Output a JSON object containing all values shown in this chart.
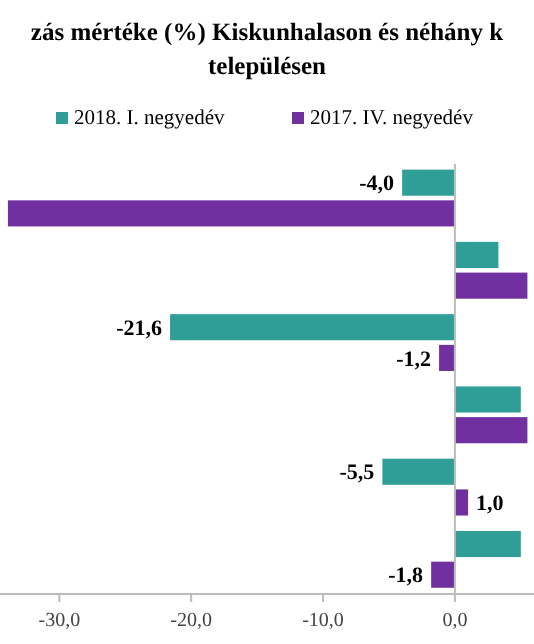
{
  "chart_data": {
    "type": "bar",
    "orientation": "horizontal",
    "title": "zás mértéke (%) Kiskunhalason és néhány k településen",
    "categories": [
      null,
      null,
      null,
      null,
      null,
      null
    ],
    "series": [
      {
        "name": "2018. I. negyedév",
        "color": "#2e9e96",
        "values": [
          -4.0,
          3.3,
          -21.6,
          5.0,
          -5.5,
          5.0
        ],
        "value_labels": [
          "-4,0",
          null,
          "-21,6",
          null,
          "-5,5",
          null
        ]
      },
      {
        "name": "2017. IV. negyedév",
        "color": "#7030a0",
        "values": [
          -33.9,
          5.5,
          -1.2,
          5.5,
          1.0,
          -1.8
        ],
        "value_labels": [
          null,
          null,
          "-1,2",
          null,
          "1,0",
          "-1,8"
        ]
      }
    ],
    "xlim": [
      -34.5,
      6
    ],
    "xticks": [
      {
        "value": -30,
        "label": "-30,0"
      },
      {
        "value": -20,
        "label": "-20,0"
      },
      {
        "value": -10,
        "label": "-10,0"
      },
      {
        "value": 0,
        "label": "0,0"
      }
    ],
    "legend": "top"
  }
}
